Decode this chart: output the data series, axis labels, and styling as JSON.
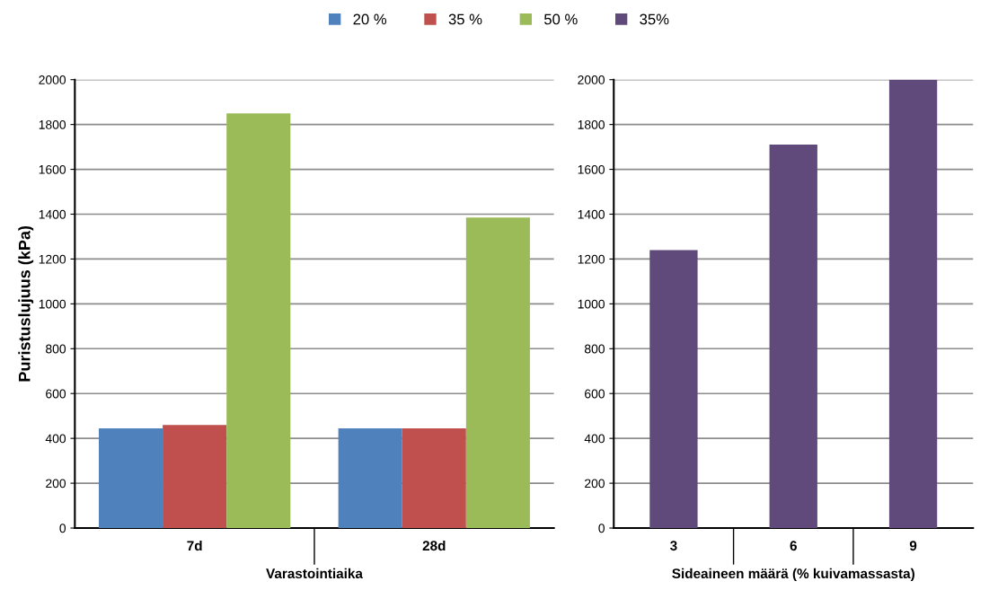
{
  "chart_data": [
    {
      "type": "bar",
      "categories": [
        "7d",
        "28d"
      ],
      "xlabel": "Varastointiaika",
      "ylabel": "Puristuslujuus (kPa)",
      "ylim": [
        0,
        2000
      ],
      "yticks": [
        0,
        200,
        400,
        600,
        800,
        1000,
        1200,
        1400,
        1600,
        1800,
        2000
      ],
      "grid": "y",
      "legend": "top",
      "series": [
        {
          "name": "20 %",
          "color": "#4f81bd",
          "values": [
            445,
            445
          ]
        },
        {
          "name": "35 %",
          "color": "#c0504d",
          "values": [
            460,
            445
          ]
        },
        {
          "name": "50 %",
          "color": "#9bbb59",
          "values": [
            1850,
            1385
          ]
        }
      ]
    },
    {
      "type": "bar",
      "categories": [
        "3",
        "6",
        "9"
      ],
      "xlabel": "Sideaineen määrä (% kuivamassasta)",
      "ylim": [
        0,
        2000
      ],
      "yticks": [
        0,
        200,
        400,
        600,
        800,
        1000,
        1200,
        1400,
        1600,
        1800,
        2000
      ],
      "grid": "y",
      "legend": "top",
      "series": [
        {
          "name": "35%",
          "color": "#604a7b",
          "values": [
            1240,
            1710,
            2000
          ]
        }
      ]
    }
  ]
}
